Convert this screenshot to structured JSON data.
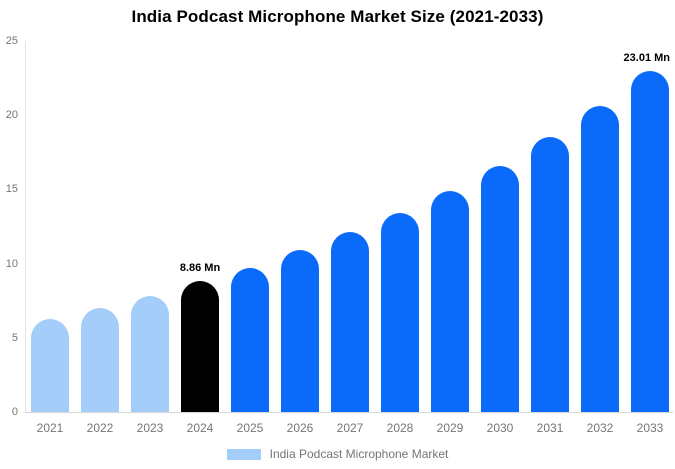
{
  "chart_data": {
    "type": "bar",
    "title": "India Podcast Microphone Market Size (2021-2033)",
    "categories": [
      "2021",
      "2022",
      "2023",
      "2024",
      "2025",
      "2026",
      "2027",
      "2028",
      "2029",
      "2030",
      "2031",
      "2032",
      "2033"
    ],
    "values": [
      6.3,
      7.0,
      7.8,
      8.86,
      9.7,
      10.9,
      12.1,
      13.4,
      14.9,
      16.6,
      18.5,
      20.6,
      23.01
    ],
    "unit": "Mn",
    "xlabel": "",
    "ylabel": "",
    "ylim": [
      0,
      25
    ],
    "yticks": [
      0,
      5,
      10,
      15,
      20,
      25
    ],
    "grid": false,
    "background_color": "#ffffff",
    "bar_colors": [
      "#a5cdf9",
      "#a5cdf9",
      "#a5cdf9",
      "#000000",
      "#0a6bfa",
      "#0a6bfa",
      "#0a6bfa",
      "#0a6bfa",
      "#0a6bfa",
      "#0a6bfa",
      "#0a6bfa",
      "#0a6bfa",
      "#0a6bfa"
    ],
    "color_roles": {
      "historical": "#a5cdf9",
      "highlight_current_year": "#000000",
      "forecast": "#0a6bfa"
    },
    "annotations": [
      {
        "category": "2024",
        "text": "8.86 Mn"
      },
      {
        "category": "2033",
        "text": "23.01 Mn"
      }
    ],
    "legend": {
      "position": "bottom",
      "items": [
        {
          "label": "India Podcast Microphone Market",
          "swatch_color": "#a5cdf9"
        }
      ]
    },
    "axis_text_color": "#757575",
    "title_color": "#000000"
  }
}
